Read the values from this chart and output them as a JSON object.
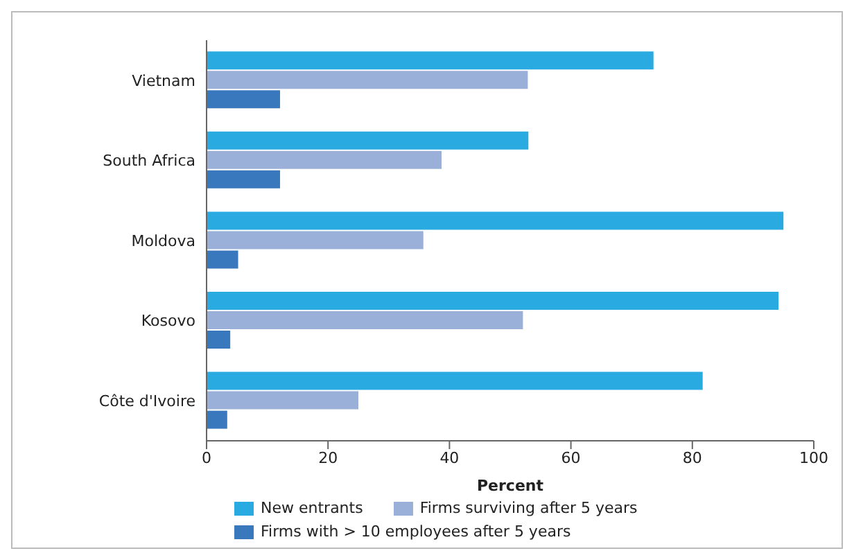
{
  "chart_data": {
    "type": "bar",
    "orientation": "horizontal",
    "xlabel": "Percent",
    "categories": [
      "Vietnam",
      "South Africa",
      "Moldova",
      "Kosovo",
      "Côte d'Ivoire"
    ],
    "series": [
      {
        "name": "New entrants",
        "color": "#29abe2",
        "values": [
          73.6,
          53,
          95,
          94.2,
          81.7
        ]
      },
      {
        "name": "Firms surviving after 5 years",
        "color": "#9bb0d9",
        "values": [
          52.9,
          38.7,
          35.7,
          52.1,
          25
        ]
      },
      {
        "name": "Firms with > 10 employees after 5 years",
        "color": "#3a78bd",
        "values": [
          12.1,
          12.1,
          5.2,
          3.9,
          3.4
        ]
      }
    ],
    "xlim": [
      0,
      100
    ],
    "xticks": [
      0,
      20,
      40,
      60,
      80,
      100
    ],
    "grid": false,
    "legend": "bottom"
  }
}
